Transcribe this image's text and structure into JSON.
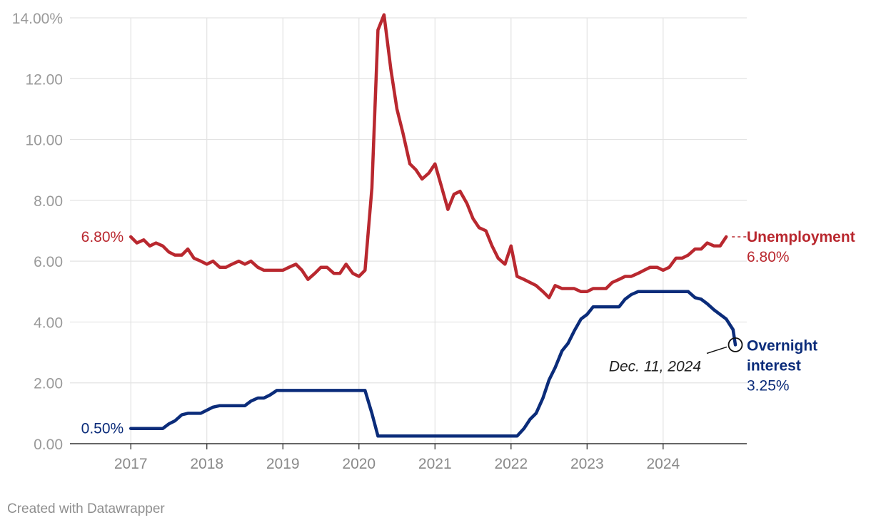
{
  "credit": "Created with Datawrapper",
  "colors": {
    "unemployment": "#b9282f",
    "overnight": "#0b2c7a",
    "grid": "#e3e3e3",
    "tick": "#9a9a9a"
  },
  "chart_data": {
    "type": "line",
    "xlim": [
      2016.2,
      2025.1
    ],
    "ylim": [
      0,
      14
    ],
    "grid": true,
    "legend": "direct labels at line ends",
    "yticks": [
      {
        "value": 0,
        "label": "0.00"
      },
      {
        "value": 2,
        "label": "2.00"
      },
      {
        "value": 4,
        "label": "4.00"
      },
      {
        "value": 6,
        "label": "6.00"
      },
      {
        "value": 8,
        "label": "8.00"
      },
      {
        "value": 10,
        "label": "10.00"
      },
      {
        "value": 12,
        "label": "12.00"
      },
      {
        "value": 14,
        "label": "14.00%"
      }
    ],
    "xticks": [
      {
        "value": 2017,
        "label": "2017"
      },
      {
        "value": 2018,
        "label": "2018"
      },
      {
        "value": 2019,
        "label": "2019"
      },
      {
        "value": 2020,
        "label": "2020"
      },
      {
        "value": 2021,
        "label": "2021"
      },
      {
        "value": 2022,
        "label": "2022"
      },
      {
        "value": 2023,
        "label": "2023"
      },
      {
        "value": 2024,
        "label": "2024"
      }
    ],
    "series": [
      {
        "name": "Unemployment",
        "color": "#b9282f",
        "start_label": "6.80%",
        "end_value_label": "6.80%",
        "points": [
          [
            2017.0,
            6.8
          ],
          [
            2017.08,
            6.6
          ],
          [
            2017.17,
            6.7
          ],
          [
            2017.25,
            6.5
          ],
          [
            2017.33,
            6.6
          ],
          [
            2017.42,
            6.5
          ],
          [
            2017.5,
            6.3
          ],
          [
            2017.58,
            6.2
          ],
          [
            2017.67,
            6.2
          ],
          [
            2017.75,
            6.4
          ],
          [
            2017.83,
            6.1
          ],
          [
            2017.92,
            6.0
          ],
          [
            2018.0,
            5.9
          ],
          [
            2018.08,
            6.0
          ],
          [
            2018.17,
            5.8
          ],
          [
            2018.25,
            5.8
          ],
          [
            2018.33,
            5.9
          ],
          [
            2018.42,
            6.0
          ],
          [
            2018.5,
            5.9
          ],
          [
            2018.58,
            6.0
          ],
          [
            2018.67,
            5.8
          ],
          [
            2018.75,
            5.7
          ],
          [
            2018.83,
            5.7
          ],
          [
            2018.92,
            5.7
          ],
          [
            2019.0,
            5.7
          ],
          [
            2019.08,
            5.8
          ],
          [
            2019.17,
            5.9
          ],
          [
            2019.25,
            5.7
          ],
          [
            2019.33,
            5.4
          ],
          [
            2019.42,
            5.6
          ],
          [
            2019.5,
            5.8
          ],
          [
            2019.58,
            5.8
          ],
          [
            2019.67,
            5.6
          ],
          [
            2019.75,
            5.6
          ],
          [
            2019.83,
            5.9
          ],
          [
            2019.92,
            5.6
          ],
          [
            2020.0,
            5.5
          ],
          [
            2020.08,
            5.7
          ],
          [
            2020.17,
            8.4
          ],
          [
            2020.25,
            13.6
          ],
          [
            2020.33,
            14.1
          ],
          [
            2020.42,
            12.3
          ],
          [
            2020.5,
            11.0
          ],
          [
            2020.58,
            10.2
          ],
          [
            2020.67,
            9.2
          ],
          [
            2020.75,
            9.0
          ],
          [
            2020.83,
            8.7
          ],
          [
            2020.92,
            8.9
          ],
          [
            2021.0,
            9.2
          ],
          [
            2021.08,
            8.5
          ],
          [
            2021.17,
            7.7
          ],
          [
            2021.25,
            8.2
          ],
          [
            2021.33,
            8.3
          ],
          [
            2021.42,
            7.9
          ],
          [
            2021.5,
            7.4
          ],
          [
            2021.58,
            7.1
          ],
          [
            2021.67,
            7.0
          ],
          [
            2021.75,
            6.5
          ],
          [
            2021.83,
            6.1
          ],
          [
            2021.92,
            5.9
          ],
          [
            2022.0,
            6.5
          ],
          [
            2022.08,
            5.5
          ],
          [
            2022.17,
            5.4
          ],
          [
            2022.25,
            5.3
          ],
          [
            2022.33,
            5.2
          ],
          [
            2022.42,
            5.0
          ],
          [
            2022.5,
            4.8
          ],
          [
            2022.58,
            5.2
          ],
          [
            2022.67,
            5.1
          ],
          [
            2022.75,
            5.1
          ],
          [
            2022.83,
            5.1
          ],
          [
            2022.92,
            5.0
          ],
          [
            2023.0,
            5.0
          ],
          [
            2023.08,
            5.1
          ],
          [
            2023.17,
            5.1
          ],
          [
            2023.25,
            5.1
          ],
          [
            2023.33,
            5.3
          ],
          [
            2023.42,
            5.4
          ],
          [
            2023.5,
            5.5
          ],
          [
            2023.58,
            5.5
          ],
          [
            2023.67,
            5.6
          ],
          [
            2023.75,
            5.7
          ],
          [
            2023.83,
            5.8
          ],
          [
            2023.92,
            5.8
          ],
          [
            2024.0,
            5.7
          ],
          [
            2024.08,
            5.8
          ],
          [
            2024.17,
            6.1
          ],
          [
            2024.25,
            6.1
          ],
          [
            2024.33,
            6.2
          ],
          [
            2024.42,
            6.4
          ],
          [
            2024.5,
            6.4
          ],
          [
            2024.58,
            6.6
          ],
          [
            2024.67,
            6.5
          ],
          [
            2024.75,
            6.5
          ],
          [
            2024.83,
            6.8
          ]
        ]
      },
      {
        "name": "Overnight interest",
        "name_lines": [
          "Overnight",
          "interest"
        ],
        "color": "#0b2c7a",
        "start_label": "0.50%",
        "end_value_label": "3.25%",
        "annotation": "Dec. 11, 2024",
        "points": [
          [
            2017.0,
            0.5
          ],
          [
            2017.42,
            0.5
          ],
          [
            2017.5,
            0.65
          ],
          [
            2017.58,
            0.75
          ],
          [
            2017.67,
            0.95
          ],
          [
            2017.75,
            1.0
          ],
          [
            2017.92,
            1.0
          ],
          [
            2018.08,
            1.2
          ],
          [
            2018.17,
            1.25
          ],
          [
            2018.5,
            1.25
          ],
          [
            2018.58,
            1.4
          ],
          [
            2018.67,
            1.5
          ],
          [
            2018.75,
            1.5
          ],
          [
            2018.83,
            1.6
          ],
          [
            2018.92,
            1.75
          ],
          [
            2020.08,
            1.75
          ],
          [
            2020.17,
            1.0
          ],
          [
            2020.25,
            0.25
          ],
          [
            2022.08,
            0.25
          ],
          [
            2022.17,
            0.5
          ],
          [
            2022.25,
            0.8
          ],
          [
            2022.33,
            1.0
          ],
          [
            2022.42,
            1.5
          ],
          [
            2022.5,
            2.1
          ],
          [
            2022.58,
            2.5
          ],
          [
            2022.67,
            3.05
          ],
          [
            2022.75,
            3.3
          ],
          [
            2022.83,
            3.7
          ],
          [
            2022.92,
            4.1
          ],
          [
            2023.0,
            4.25
          ],
          [
            2023.08,
            4.5
          ],
          [
            2023.42,
            4.5
          ],
          [
            2023.5,
            4.75
          ],
          [
            2023.58,
            4.9
          ],
          [
            2023.67,
            5.0
          ],
          [
            2024.33,
            5.0
          ],
          [
            2024.42,
            4.8
          ],
          [
            2024.5,
            4.75
          ],
          [
            2024.58,
            4.6
          ],
          [
            2024.67,
            4.4
          ],
          [
            2024.75,
            4.25
          ],
          [
            2024.83,
            4.1
          ],
          [
            2024.92,
            3.75
          ],
          [
            2024.95,
            3.25
          ]
        ]
      }
    ]
  }
}
